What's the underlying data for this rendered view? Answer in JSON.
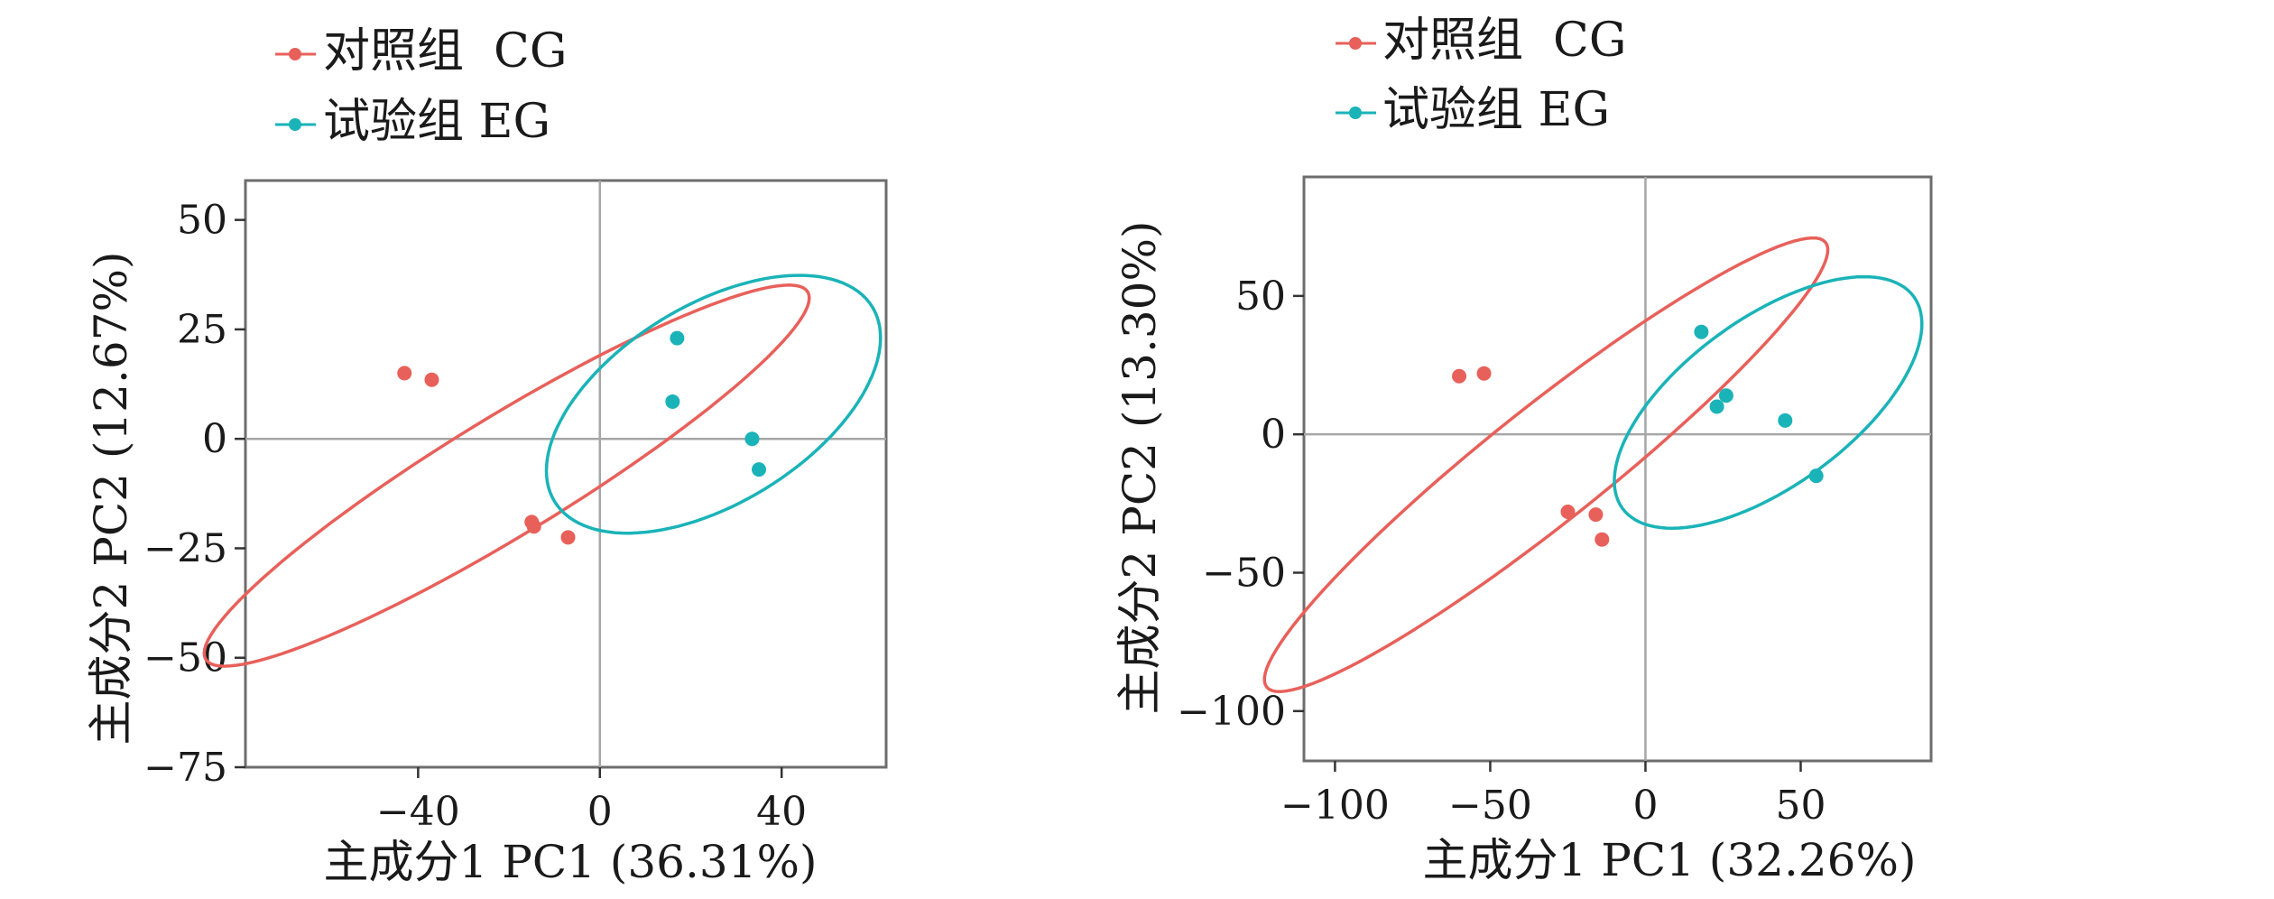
{
  "chart_data": [
    {
      "type": "scatter",
      "xlabel": "主成分1 PC1 (36.31%)",
      "ylabel": "主成分2 PC2 (12.67%)",
      "xlim": [
        -78,
        63
      ],
      "ylim": [
        -75,
        59
      ],
      "xticks": [
        -40,
        0,
        40
      ],
      "yticks": [
        50,
        25,
        0,
        -25,
        -50,
        -75
      ],
      "xtick_labels": [
        "−40",
        "0",
        "40"
      ],
      "ytick_labels": [
        "50",
        "25",
        "0",
        "−25",
        "−50",
        "−75"
      ],
      "legend": [
        {
          "label": "对照组  CG",
          "color": "#e8605a"
        },
        {
          "label": "试验组 EG",
          "color": "#1ab3b8"
        }
      ],
      "legend_position": "top-left",
      "grid": false,
      "reference_lines": {
        "x": 0,
        "y": 0
      },
      "series": [
        {
          "name": "对照组  CG",
          "color": "#e8605a",
          "x": [
            -43,
            -37,
            -15,
            -14.5,
            -7
          ],
          "y": [
            15,
            13.5,
            -19,
            -20,
            -22.5
          ]
        },
        {
          "name": "试验组 EG",
          "color": "#1ab3b8",
          "x": [
            17,
            16,
            33.5,
            35
          ],
          "y": [
            23,
            8.5,
            0,
            -7
          ]
        }
      ],
      "ellipses": [
        {
          "series": "对照组  CG",
          "cx": -20.5,
          "cy": -8.4,
          "rx": 77.6,
          "ry": 13.0,
          "angle": -31.4
        },
        {
          "series": "试验组 EG",
          "cx": 25.0,
          "cy": 7.9,
          "rx": 41.0,
          "ry": 21.8,
          "angle": -31.5
        }
      ]
    },
    {
      "type": "scatter",
      "xlabel": "主成分1 PC1 (32.26%)",
      "ylabel": "主成分2 PC2 (13.30%)",
      "xlim": [
        -110,
        92
      ],
      "ylim": [
        -118,
        93
      ],
      "xticks": [
        -100,
        -50,
        0,
        50
      ],
      "yticks": [
        50,
        0,
        -50,
        -100
      ],
      "xtick_labels": [
        "−100",
        "−50",
        "0",
        "50"
      ],
      "ytick_labels": [
        "50",
        "0",
        "−50",
        "−100"
      ],
      "legend": [
        {
          "label": "对照组  CG",
          "color": "#e8605a"
        },
        {
          "label": "试验组 EG",
          "color": "#1ab3b8"
        }
      ],
      "legend_position": "top-left",
      "grid": false,
      "reference_lines": {
        "x": 0,
        "y": 0
      },
      "series": [
        {
          "name": "对照组  CG",
          "color": "#e8605a",
          "x": [
            -60,
            -52,
            -25,
            -16,
            -14
          ],
          "y": [
            21,
            22,
            -28,
            -29,
            -38
          ]
        },
        {
          "name": "试验组 EG",
          "color": "#1ab3b8",
          "x": [
            18,
            26,
            23,
            45,
            55
          ],
          "y": [
            37,
            14,
            10,
            5,
            -15
          ]
        }
      ],
      "ellipses": [
        {
          "series": "对照组  CG",
          "cx": -32.0,
          "cy": -11.0,
          "rx": 115.0,
          "ry": 18.5,
          "angle": -38.5
        },
        {
          "series": "试验组 EG",
          "cx": 39.5,
          "cy": 11.5,
          "rx": 58.0,
          "ry": 27.0,
          "angle": -36.0
        }
      ]
    }
  ]
}
